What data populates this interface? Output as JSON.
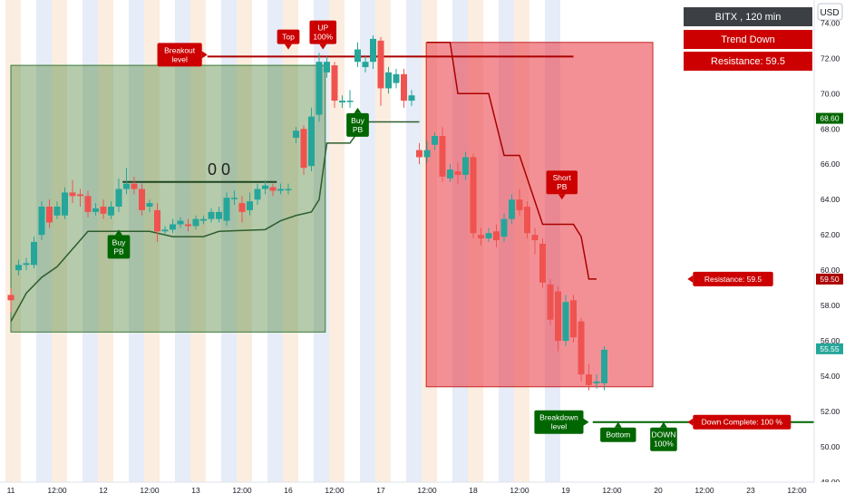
{
  "chart_data": {
    "type": "candlestick",
    "currency": "USD",
    "info_panel": {
      "title": "BITX , 120 min",
      "trend": "Trend Down",
      "resistance": "Resistance: 59.5"
    },
    "ylim": [
      48,
      75.3
    ],
    "y_ticks": [
      "74.00",
      "72.00",
      "70.00",
      "68.00",
      "66.00",
      "64.00",
      "62.00",
      "60.00",
      "58.00",
      "56.00",
      "54.00",
      "52.00",
      "50.00",
      "48.00"
    ],
    "price_badges": [
      {
        "label": "68.60",
        "value": 68.6,
        "color": "#006600"
      },
      {
        "label": "59.50",
        "value": 59.5,
        "color": "#aa0000"
      },
      {
        "label": "55.55",
        "value": 55.55,
        "color": "#26a69a"
      }
    ],
    "x_ticks": [
      {
        "label": "11",
        "i": 0
      },
      {
        "label": "12:00",
        "i": 6
      },
      {
        "label": "12",
        "i": 12
      },
      {
        "label": "12:00",
        "i": 18
      },
      {
        "label": "13",
        "i": 24
      },
      {
        "label": "12:00",
        "i": 30
      },
      {
        "label": "16",
        "i": 36
      },
      {
        "label": "12:00",
        "i": 42
      },
      {
        "label": "17",
        "i": 48
      },
      {
        "label": "12:00",
        "i": 54
      },
      {
        "label": "18",
        "i": 60
      },
      {
        "label": "12:00",
        "i": 66
      },
      {
        "label": "19",
        "i": 72
      },
      {
        "label": "12:00",
        "i": 78
      },
      {
        "label": "20",
        "i": 84
      },
      {
        "label": "12:00",
        "i": 90
      },
      {
        "label": "23",
        "i": 96
      },
      {
        "label": "12:00",
        "i": 102
      }
    ],
    "candles": [
      {
        "i": 0,
        "o": 58.6,
        "c": 58.3,
        "h": 59.0,
        "l": 57.6
      },
      {
        "i": 1,
        "o": 60.0,
        "c": 60.3,
        "h": 60.6,
        "l": 59.7
      },
      {
        "i": 2,
        "o": 60.3,
        "c": 60.4,
        "h": 60.7,
        "l": 60.0
      },
      {
        "i": 3,
        "o": 60.3,
        "c": 61.6,
        "h": 61.9,
        "l": 60.1
      },
      {
        "i": 4,
        "o": 62.0,
        "c": 63.6,
        "h": 63.9,
        "l": 61.7
      },
      {
        "i": 5,
        "o": 63.6,
        "c": 62.7,
        "h": 64.0,
        "l": 62.4
      },
      {
        "i": 6,
        "o": 63.1,
        "c": 63.6,
        "h": 63.9,
        "l": 62.9
      },
      {
        "i": 7,
        "o": 63.1,
        "c": 64.4,
        "h": 64.7,
        "l": 62.9
      },
      {
        "i": 8,
        "o": 64.4,
        "c": 64.2,
        "h": 65.1,
        "l": 63.8
      },
      {
        "i": 9,
        "o": 64.3,
        "c": 64.2,
        "h": 64.6,
        "l": 63.6
      },
      {
        "i": 10,
        "o": 64.2,
        "c": 63.3,
        "h": 64.5,
        "l": 63.0
      },
      {
        "i": 11,
        "o": 63.3,
        "c": 63.5,
        "h": 63.8,
        "l": 63.1
      },
      {
        "i": 12,
        "o": 63.6,
        "c": 63.2,
        "h": 64.0,
        "l": 62.9
      },
      {
        "i": 13,
        "o": 63.1,
        "c": 63.6,
        "h": 63.9,
        "l": 62.9
      },
      {
        "i": 14,
        "o": 63.6,
        "c": 64.6,
        "h": 65.2,
        "l": 63.3
      },
      {
        "i": 15,
        "o": 64.6,
        "c": 64.9,
        "h": 65.8,
        "l": 64.3
      },
      {
        "i": 16,
        "o": 64.9,
        "c": 64.6,
        "h": 65.3,
        "l": 64.3
      },
      {
        "i": 17,
        "o": 64.6,
        "c": 63.4,
        "h": 64.9,
        "l": 63.1
      },
      {
        "i": 18,
        "o": 63.6,
        "c": 63.8,
        "h": 64.0,
        "l": 63.3
      },
      {
        "i": 19,
        "o": 63.4,
        "c": 62.2,
        "h": 63.8,
        "l": 61.6
      },
      {
        "i": 20,
        "o": 62.2,
        "c": 62.3,
        "h": 62.5,
        "l": 62.0
      },
      {
        "i": 21,
        "o": 62.3,
        "c": 62.6,
        "h": 62.9,
        "l": 62.1
      },
      {
        "i": 22,
        "o": 62.6,
        "c": 62.8,
        "h": 63.0,
        "l": 62.4
      },
      {
        "i": 23,
        "o": 62.6,
        "c": 62.5,
        "h": 62.9,
        "l": 62.2
      },
      {
        "i": 24,
        "o": 62.5,
        "c": 62.9,
        "h": 63.1,
        "l": 62.3
      },
      {
        "i": 25,
        "o": 62.8,
        "c": 62.9,
        "h": 63.1,
        "l": 62.6
      },
      {
        "i": 26,
        "o": 62.9,
        "c": 63.3,
        "h": 63.5,
        "l": 62.7
      },
      {
        "i": 27,
        "o": 62.9,
        "c": 63.3,
        "h": 63.6,
        "l": 62.7
      },
      {
        "i": 28,
        "o": 62.8,
        "c": 64.1,
        "h": 64.4,
        "l": 62.5
      },
      {
        "i": 29,
        "o": 64.1,
        "c": 64.1,
        "h": 64.5,
        "l": 63.7
      },
      {
        "i": 30,
        "o": 63.8,
        "c": 63.3,
        "h": 64.2,
        "l": 62.7
      },
      {
        "i": 31,
        "o": 63.4,
        "c": 63.9,
        "h": 64.4,
        "l": 63.1
      },
      {
        "i": 32,
        "o": 64.0,
        "c": 64.6,
        "h": 64.9,
        "l": 63.7
      },
      {
        "i": 33,
        "o": 64.6,
        "c": 64.8,
        "h": 65.1,
        "l": 64.3
      },
      {
        "i": 34,
        "o": 64.7,
        "c": 64.5,
        "h": 64.9,
        "l": 64.2
      },
      {
        "i": 35,
        "o": 64.5,
        "c": 64.6,
        "h": 64.9,
        "l": 64.3
      },
      {
        "i": 36,
        "o": 64.6,
        "c": 64.6,
        "h": 64.9,
        "l": 64.3
      },
      {
        "i": 37,
        "o": 67.5,
        "c": 67.9,
        "h": 68.1,
        "l": 67.2
      },
      {
        "i": 38,
        "o": 68.0,
        "c": 65.8,
        "h": 68.2,
        "l": 65.4
      },
      {
        "i": 39,
        "o": 65.9,
        "c": 68.7,
        "h": 69.2,
        "l": 65.6
      },
      {
        "i": 40,
        "o": 68.8,
        "c": 71.8,
        "h": 72.3,
        "l": 68.4
      },
      {
        "i": 41,
        "o": 71.2,
        "c": 71.8,
        "h": 72.1,
        "l": 70.9
      },
      {
        "i": 42,
        "o": 71.6,
        "c": 69.6,
        "h": 71.8,
        "l": 69.2
      },
      {
        "i": 43,
        "o": 69.5,
        "c": 69.6,
        "h": 69.9,
        "l": 69.2
      },
      {
        "i": 44,
        "o": 69.6,
        "c": 69.6,
        "h": 70.2,
        "l": 69.2
      },
      {
        "i": 45,
        "o": 71.8,
        "c": 72.5,
        "h": 72.9,
        "l": 71.5
      },
      {
        "i": 46,
        "o": 71.5,
        "c": 71.8,
        "h": 72.1,
        "l": 71.2
      },
      {
        "i": 47,
        "o": 71.8,
        "c": 73.1,
        "h": 73.3,
        "l": 71.4
      },
      {
        "i": 48,
        "o": 73.0,
        "c": 70.3,
        "h": 73.2,
        "l": 69.3
      },
      {
        "i": 49,
        "o": 70.3,
        "c": 71.2,
        "h": 71.5,
        "l": 70.0
      },
      {
        "i": 50,
        "o": 70.6,
        "c": 71.1,
        "h": 71.4,
        "l": 70.3
      },
      {
        "i": 51,
        "o": 71.1,
        "c": 69.6,
        "h": 71.4,
        "l": 69.2
      },
      {
        "i": 52,
        "o": 69.6,
        "c": 69.9,
        "h": 70.2,
        "l": 69.3
      },
      {
        "i": 53,
        "o": 66.8,
        "c": 66.4,
        "h": 67.2,
        "l": 66.0
      },
      {
        "i": 54,
        "o": 66.4,
        "c": 66.8,
        "h": 67.3,
        "l": 66.1
      },
      {
        "i": 55,
        "o": 67.1,
        "c": 67.6,
        "h": 67.8,
        "l": 66.8
      },
      {
        "i": 56,
        "o": 67.6,
        "c": 65.3,
        "h": 68.1,
        "l": 65.0
      },
      {
        "i": 57,
        "o": 65.2,
        "c": 65.7,
        "h": 66.0,
        "l": 65.0
      },
      {
        "i": 58,
        "o": 65.6,
        "c": 65.4,
        "h": 66.1,
        "l": 64.9
      },
      {
        "i": 59,
        "o": 65.4,
        "c": 66.4,
        "h": 66.7,
        "l": 65.1
      },
      {
        "i": 60,
        "o": 66.4,
        "c": 62.1,
        "h": 66.6,
        "l": 61.8
      },
      {
        "i": 61,
        "o": 62.0,
        "c": 61.8,
        "h": 62.4,
        "l": 61.4
      },
      {
        "i": 62,
        "o": 61.8,
        "c": 62.1,
        "h": 62.4,
        "l": 61.6
      },
      {
        "i": 63,
        "o": 62.2,
        "c": 61.7,
        "h": 62.6,
        "l": 61.3
      },
      {
        "i": 64,
        "o": 61.9,
        "c": 62.9,
        "h": 63.2,
        "l": 61.6
      },
      {
        "i": 65,
        "o": 62.9,
        "c": 64.0,
        "h": 64.3,
        "l": 62.6
      },
      {
        "i": 66,
        "o": 64.0,
        "c": 63.4,
        "h": 64.6,
        "l": 63.1
      },
      {
        "i": 67,
        "o": 63.6,
        "c": 62.1,
        "h": 63.9,
        "l": 61.8
      },
      {
        "i": 68,
        "o": 62.0,
        "c": 61.7,
        "h": 62.4,
        "l": 60.9
      },
      {
        "i": 69,
        "o": 61.5,
        "c": 59.3,
        "h": 61.8,
        "l": 59.0
      },
      {
        "i": 70,
        "o": 59.2,
        "c": 57.2,
        "h": 59.5,
        "l": 56.9
      },
      {
        "i": 71,
        "o": 58.8,
        "c": 56.0,
        "h": 59.1,
        "l": 55.4
      },
      {
        "i": 72,
        "o": 56.0,
        "c": 58.2,
        "h": 58.6,
        "l": 55.7
      },
      {
        "i": 73,
        "o": 58.3,
        "c": 56.2,
        "h": 58.6,
        "l": 55.9
      },
      {
        "i": 74,
        "o": 57.1,
        "c": 54.1,
        "h": 57.3,
        "l": 53.7
      },
      {
        "i": 75,
        "o": 54.1,
        "c": 53.5,
        "h": 54.7,
        "l": 53.2
      },
      {
        "i": 76,
        "o": 53.6,
        "c": 53.7,
        "h": 54.1,
        "l": 53.3
      },
      {
        "i": 77,
        "o": 53.6,
        "c": 55.5,
        "h": 55.7,
        "l": 53.2
      }
    ],
    "trailing_stop_green": [
      [
        0,
        57.1
      ],
      [
        2,
        58.7
      ],
      [
        4,
        59.6
      ],
      [
        6,
        60.2
      ],
      [
        10,
        62.2
      ],
      [
        18,
        62.2
      ],
      [
        21,
        61.9
      ],
      [
        25,
        61.9
      ],
      [
        27,
        62.2
      ],
      [
        33,
        62.3
      ],
      [
        35,
        62.8
      ],
      [
        37,
        63.1
      ],
      [
        39,
        63.3
      ],
      [
        40,
        64.0
      ],
      [
        41,
        67.2
      ],
      [
        44,
        67.2
      ],
      [
        46,
        68.4
      ],
      [
        53,
        68.4
      ]
    ],
    "trailing_stop_red": [
      [
        54,
        72.9
      ],
      [
        57,
        72.9
      ],
      [
        58,
        70.0
      ],
      [
        62,
        70.0
      ],
      [
        64,
        66.5
      ],
      [
        66,
        66.5
      ],
      [
        69,
        62.6
      ],
      [
        73,
        62.6
      ],
      [
        74,
        61.9
      ],
      [
        75,
        59.5
      ],
      [
        76,
        59.5
      ]
    ],
    "boxes": [
      {
        "from_i": 0,
        "to_i": 40.8,
        "top": 71.6,
        "bottom": 56.5,
        "kind": "green"
      },
      {
        "from_i": 53.9,
        "to_i": 83.3,
        "top": 72.9,
        "bottom": 53.4,
        "kind": "red"
      }
    ],
    "level_lines": [
      {
        "from_i": 25.5,
        "to_i": 73.0,
        "y": 72.1,
        "color": "#aa0000"
      },
      {
        "from_i": 14.5,
        "to_i": 34.5,
        "y": 65.0,
        "color": "#1e4620"
      },
      {
        "from_i": 75.5,
        "to_i": 107.0,
        "y": 51.4,
        "color": "#006600"
      }
    ],
    "zeros_label": {
      "text": "0 0",
      "i": 27.0,
      "y": 65.4
    },
    "callouts": [
      {
        "text": "Top",
        "i": 36.0,
        "y": 72.5,
        "bg": "#cc0000",
        "dir": "down"
      },
      {
        "text": "UP\n100%",
        "i": 40.5,
        "y": 72.5,
        "bg": "#cc0000",
        "dir": "down"
      },
      {
        "text": "Breakout\nlevel",
        "i": 25.5,
        "y": 72.2,
        "bg": "#cc0000",
        "dir": "right"
      },
      {
        "text": "Buy\nPB",
        "i": 45.0,
        "y": 69.2,
        "bg": "#006600",
        "dir": "up"
      },
      {
        "text": "Buy\nPB",
        "i": 14.0,
        "y": 62.3,
        "bg": "#006600",
        "dir": "up"
      },
      {
        "text": "Short\nPB",
        "i": 71.5,
        "y": 64.0,
        "bg": "#cc0000",
        "dir": "down"
      },
      {
        "text": "Resistance: 59.5",
        "i": 87.8,
        "y": 59.5,
        "bg": "#cc0000",
        "dir": "left"
      },
      {
        "text": "Breakdown\nlevel",
        "i": 75.0,
        "y": 51.4,
        "bg": "#006600",
        "dir": "right"
      },
      {
        "text": "Down Complete: 100 %",
        "i": 87.8,
        "y": 51.4,
        "bg": "#cc0000",
        "dir": "left"
      },
      {
        "text": "Bottom",
        "i": 78.8,
        "y": 51.4,
        "bg": "#006600",
        "dir": "up"
      },
      {
        "text": "DOWN\n100%",
        "i": 84.7,
        "y": 51.4,
        "bg": "#006600",
        "dir": "up"
      }
    ],
    "colors": {
      "up": "#26a69a",
      "down": "#ef5350"
    }
  }
}
